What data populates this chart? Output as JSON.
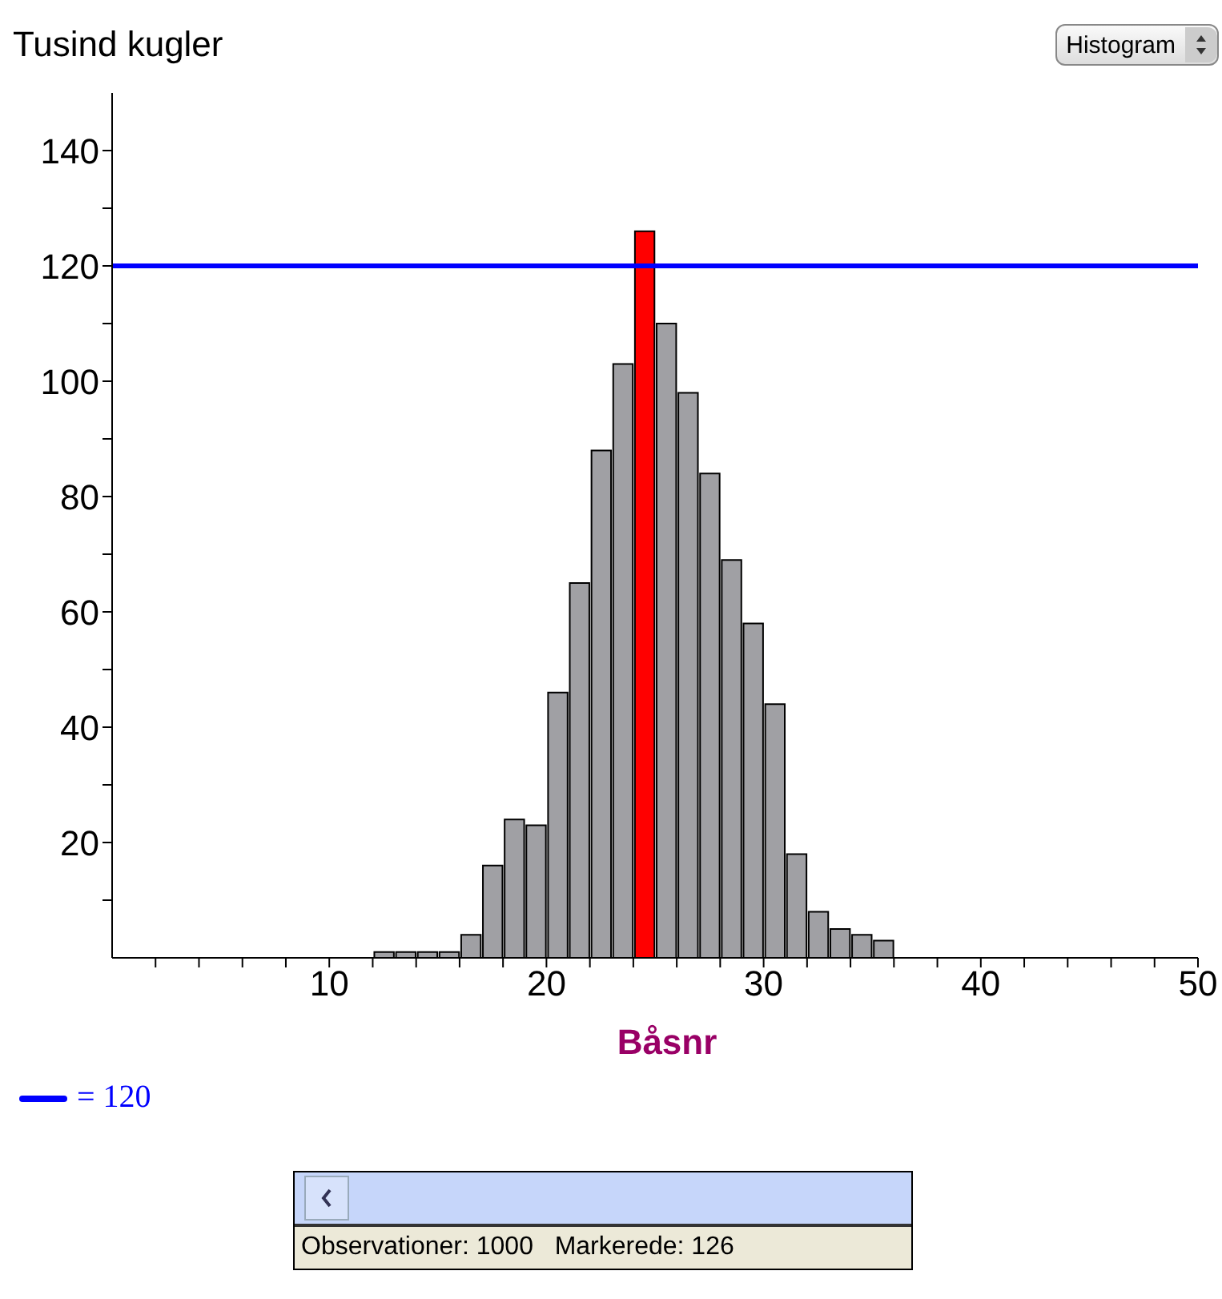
{
  "chart_data": {
    "type": "histogram",
    "ylabel": "Tusind kugler",
    "xlabel": "Båsnr",
    "bins": [
      12,
      13,
      14,
      15,
      16,
      17,
      18,
      19,
      20,
      21,
      22,
      23,
      24,
      25,
      26,
      27,
      28,
      29,
      30,
      31,
      32,
      33,
      34,
      35,
      36
    ],
    "values": [
      1,
      1,
      1,
      1,
      4,
      16,
      24,
      23,
      46,
      65,
      88,
      103,
      126,
      110,
      98,
      84,
      69,
      58,
      44,
      18,
      8,
      5,
      4,
      3
    ],
    "colors": [
      "#a0a0a4",
      "#a0a0a4",
      "#a0a0a4",
      "#a0a0a4",
      "#a0a0a4",
      "#a0a0a4",
      "#a0a0a4",
      "#a0a0a4",
      "#a0a0a4",
      "#a0a0a4",
      "#a0a0a4",
      "#a0a0a4",
      "#ff0000",
      "#a0a0a4",
      "#a0a0a4",
      "#a0a0a4",
      "#a0a0a4",
      "#a0a0a4",
      "#a0a0a4",
      "#a0a0a4",
      "#a0a0a4",
      "#a0a0a4",
      "#a0a0a4",
      "#a0a0a4"
    ],
    "xlim": [
      0,
      50
    ],
    "xticks": [
      {
        "value": 2,
        "label": null
      },
      {
        "value": 4,
        "label": null
      },
      {
        "value": 6,
        "label": null
      },
      {
        "value": 8,
        "label": null
      },
      10,
      {
        "value": 12,
        "label": null
      },
      {
        "value": 14,
        "label": null
      },
      {
        "value": 16,
        "label": null
      },
      {
        "value": 18,
        "label": null
      },
      20,
      {
        "value": 22,
        "label": null
      },
      {
        "value": 24,
        "label": null
      },
      {
        "value": 26,
        "label": null
      },
      {
        "value": 28,
        "label": null
      },
      30,
      {
        "value": 32,
        "label": null
      },
      {
        "value": 34,
        "label": null
      },
      {
        "value": 36,
        "label": null
      },
      {
        "value": 38,
        "label": null
      },
      40,
      {
        "value": 42,
        "label": null
      },
      {
        "value": 44,
        "label": null
      },
      {
        "value": 46,
        "label": null
      },
      {
        "value": 48,
        "label": null
      },
      50
    ],
    "ylim": [
      0,
      150
    ],
    "yticks": [
      {
        "value": 10,
        "label": null
      },
      20,
      {
        "value": 30,
        "label": null
      },
      40,
      {
        "value": 50,
        "label": null
      },
      60,
      {
        "value": 70,
        "label": null
      },
      80,
      {
        "value": 90,
        "label": null
      },
      100,
      {
        "value": 110,
        "label": null
      },
      120,
      {
        "value": 130,
        "label": null
      },
      140
    ],
    "ref_lines": [
      {
        "axis": "y",
        "value": 120,
        "label": "= 120",
        "color": "#0000ff"
      }
    ],
    "annotations": [
      "Histogram",
      "Observationer: 1000   Markerede: 126"
    ]
  }
}
